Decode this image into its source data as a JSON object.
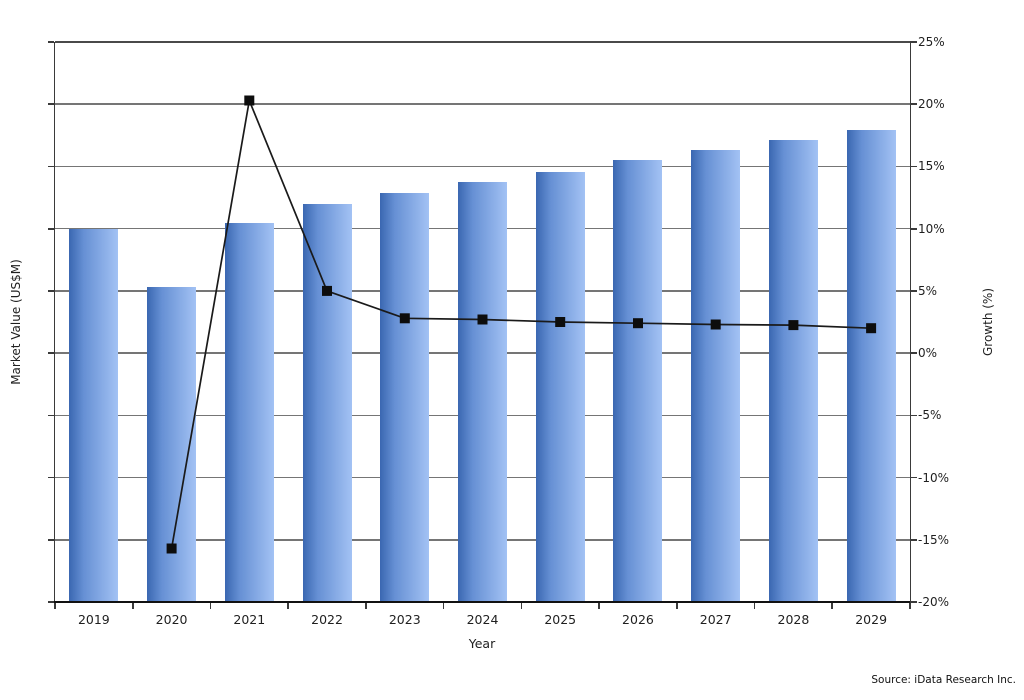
{
  "chart_data": {
    "type": "combo",
    "categories": [
      "2019",
      "2020",
      "2021",
      "2022",
      "2023",
      "2024",
      "2025",
      "2026",
      "2027",
      "2028",
      "2029"
    ],
    "xlabel": "Year",
    "left_axis": {
      "title": "Market Value (US$M)",
      "numeric_tick_labels_shown": false
    },
    "right_axis": {
      "title": "Growth (%)",
      "min": -20,
      "max": 25,
      "tick_step": 5,
      "tick_labels": [
        "25%",
        "20%",
        "15%",
        "10%",
        "5%",
        "0%",
        "-5%",
        "-10%",
        "-15%",
        "-20%"
      ]
    },
    "series": [
      {
        "name": "Market Value (US$M)",
        "type": "bar",
        "axis": "left",
        "values_fraction_of_left_axis": [
          0.666,
          0.563,
          0.677,
          0.711,
          0.73,
          0.75,
          0.768,
          0.789,
          0.807,
          0.825,
          0.843
        ]
      },
      {
        "name": "Growth (%)",
        "type": "line",
        "axis": "right",
        "values_percent": [
          null,
          -15.7,
          20.3,
          5.0,
          2.8,
          2.7,
          2.5,
          2.4,
          2.3,
          2.25,
          2.0
        ]
      }
    ],
    "grid": "horizontal",
    "legend": "none",
    "title": ""
  },
  "source_note": "Source: iData Research Inc.",
  "colors": {
    "bar_gradient_dark": "#3a67b1",
    "bar_gradient_mid": "#6690d4",
    "bar_gradient_light": "#a3c2f4",
    "line": "#1a1a1a",
    "marker": "#0d0d0d",
    "gridline": "#757575",
    "axis": "#3a3a3a",
    "bottom_axis": "#111111",
    "text": "#1f1f1f",
    "background": "#ffffff"
  }
}
